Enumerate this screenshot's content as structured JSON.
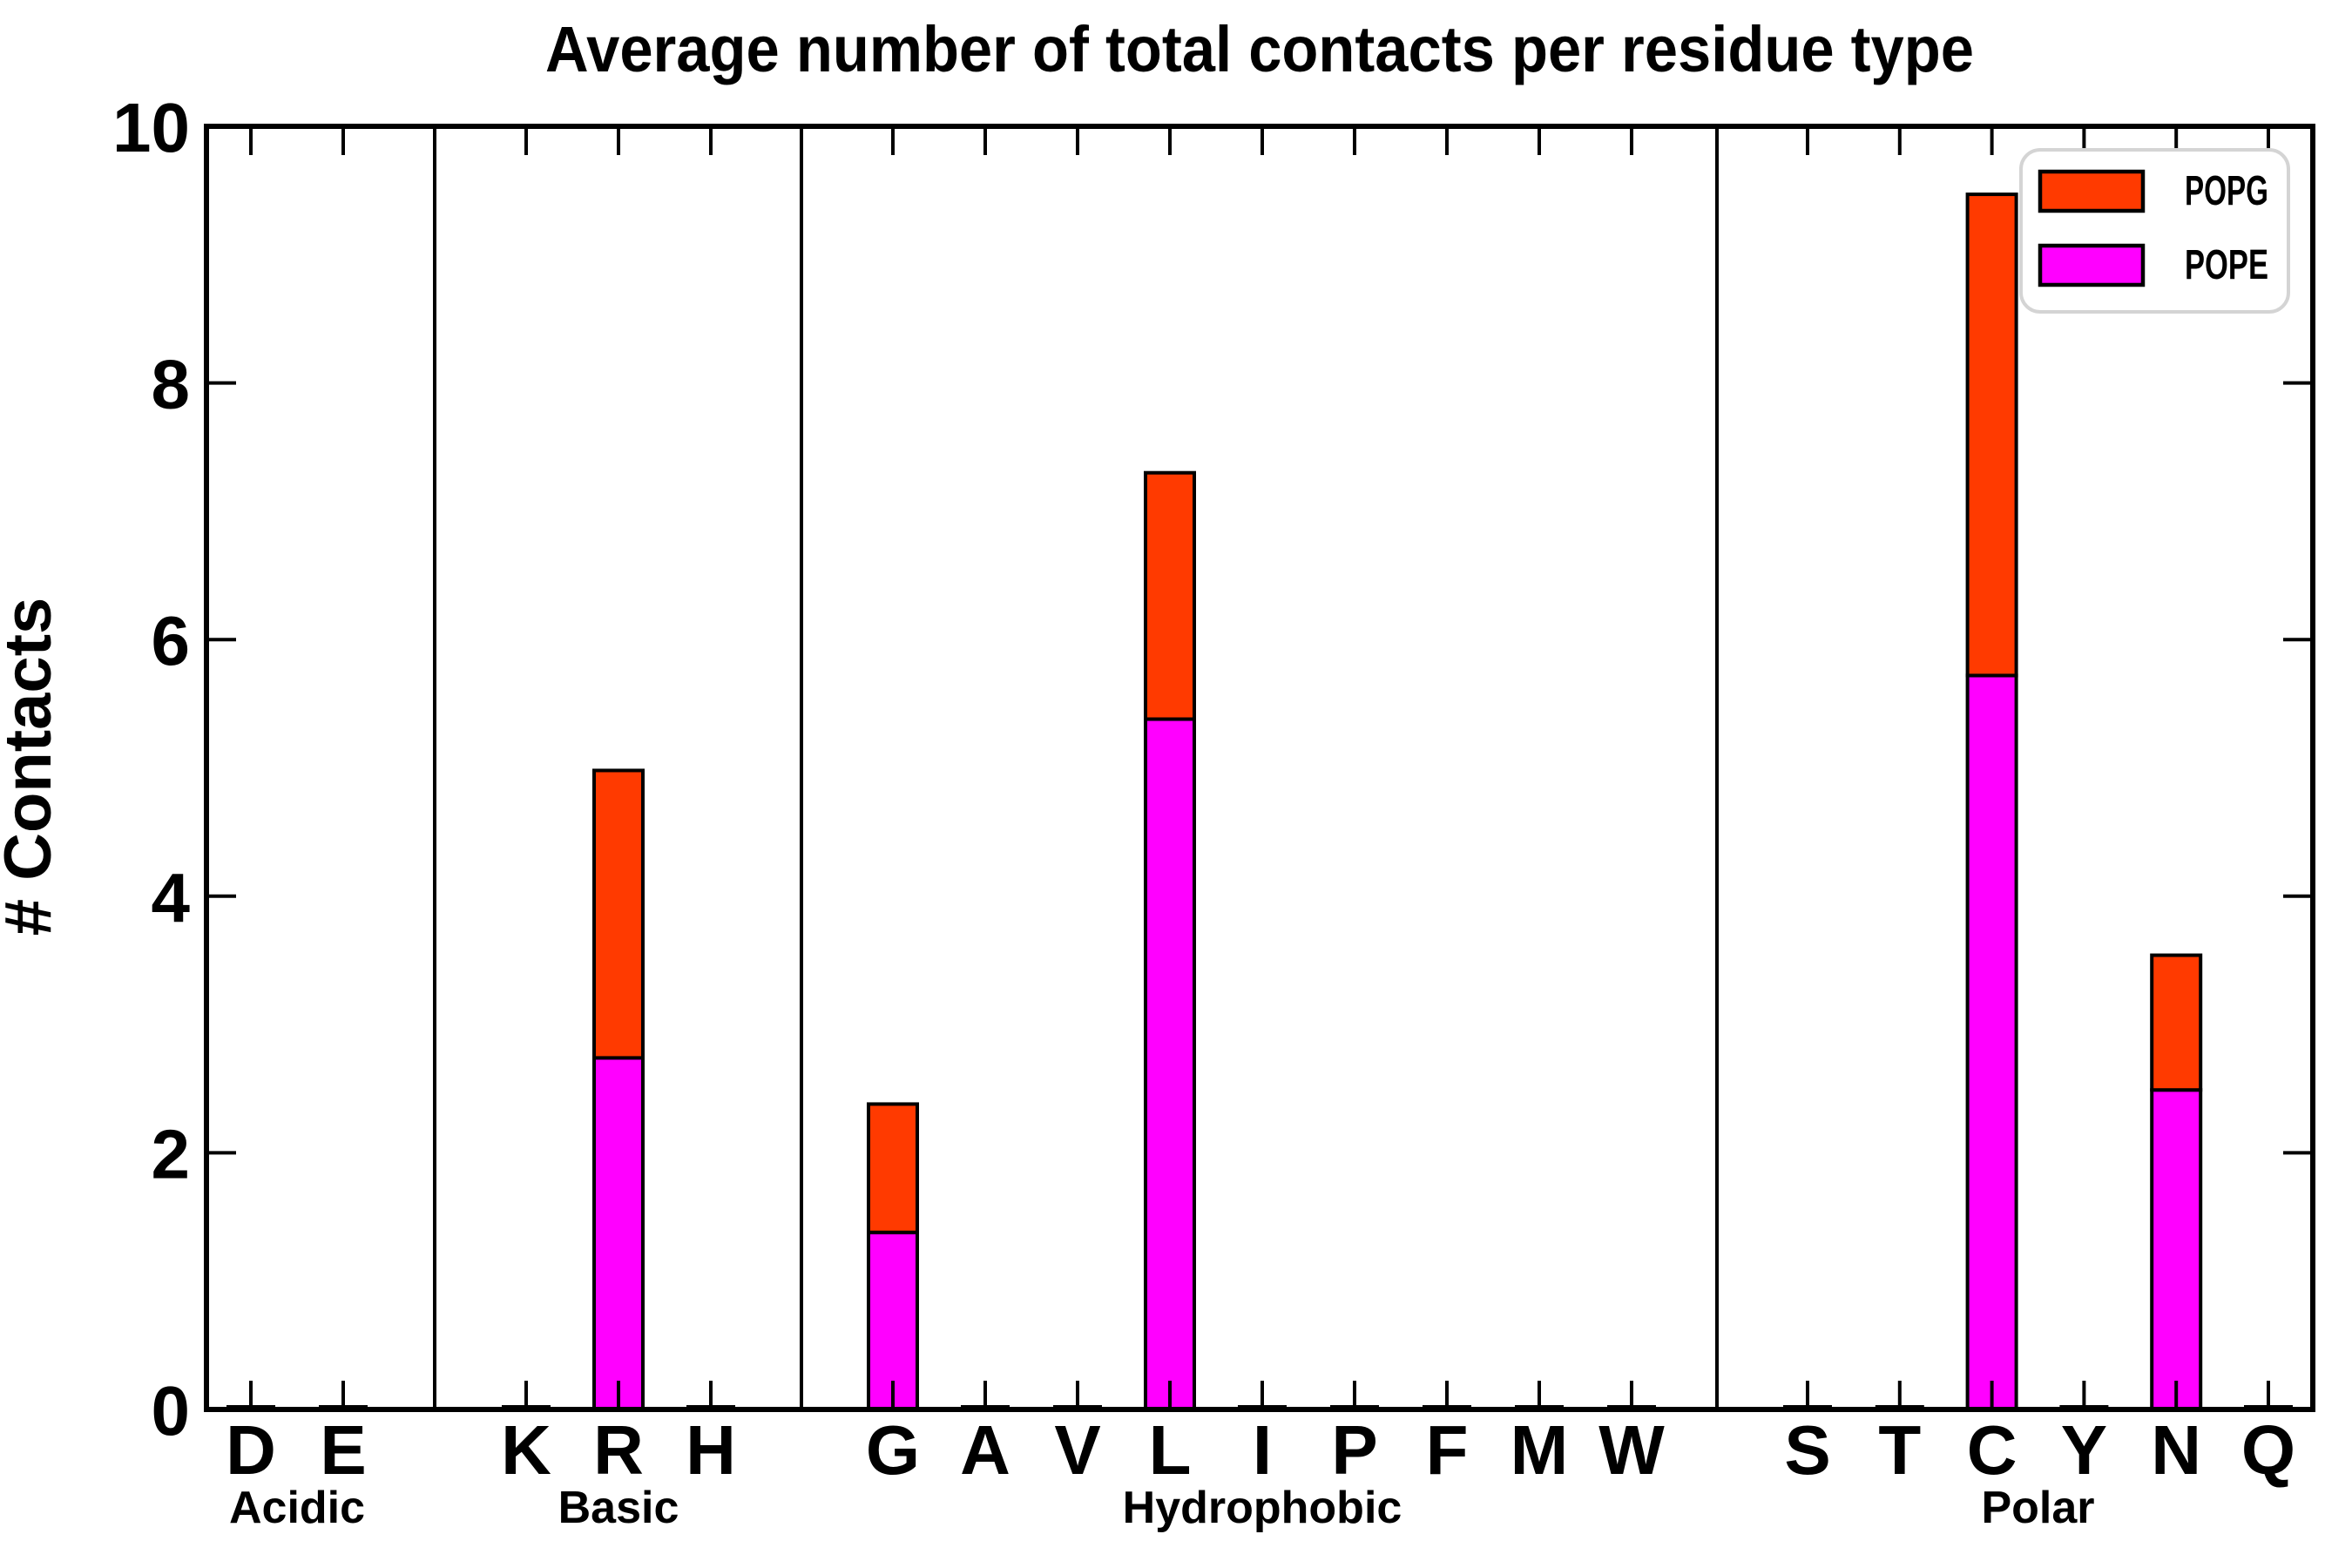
{
  "colors": {
    "popg": "#FF3A00",
    "pope": "#FF00FF",
    "bar_edge": "#000000",
    "axis": "#000000",
    "legend_border": "#D4D4D4",
    "background": "#FFFFFF"
  },
  "chart_data": {
    "type": "bar",
    "stacked": true,
    "title": "Average number of total contacts per residue type",
    "xlabel": "",
    "ylabel": "# Contacts",
    "ylim": [
      0,
      10
    ],
    "yticks": [
      0,
      2,
      4,
      6,
      8,
      10
    ],
    "grid": false,
    "legend_position": "upper right",
    "legend": [
      {
        "label": "POPG",
        "color_key": "popg"
      },
      {
        "label": "POPE",
        "color_key": "pope"
      }
    ],
    "stack_order_bottom_to_top": [
      "POPE",
      "POPG"
    ],
    "groups": [
      {
        "label": "Acidic",
        "categories": [
          "D",
          "E"
        ],
        "series": [
          {
            "name": "POPE",
            "values": [
              0.02,
              0.02
            ]
          },
          {
            "name": "POPG",
            "values": [
              0.02,
              0.02
            ]
          }
        ]
      },
      {
        "label": "Basic",
        "categories": [
          "K",
          "R",
          "H"
        ],
        "series": [
          {
            "name": "POPE",
            "values": [
              0.02,
              2.74,
              0.02
            ]
          },
          {
            "name": "POPG",
            "values": [
              0.02,
              2.24,
              0.02
            ]
          }
        ]
      },
      {
        "label": "Hydrophobic",
        "categories": [
          "G",
          "A",
          "V",
          "L",
          "I",
          "P",
          "F",
          "M",
          "W"
        ],
        "series": [
          {
            "name": "POPE",
            "values": [
              1.38,
              0.02,
              0.02,
              5.38,
              0.02,
              0.02,
              0.02,
              0.02,
              0.02
            ]
          },
          {
            "name": "POPG",
            "values": [
              1.0,
              0.02,
              0.02,
              1.92,
              0.02,
              0.02,
              0.02,
              0.02,
              0.02
            ]
          }
        ]
      },
      {
        "label": "Polar",
        "categories": [
          "S",
          "T",
          "C",
          "Y",
          "N",
          "Q"
        ],
        "series": [
          {
            "name": "POPE",
            "values": [
              0.02,
              0.02,
              5.72,
              0.02,
              2.49,
              0.02
            ]
          },
          {
            "name": "POPG",
            "values": [
              0.02,
              0.02,
              3.75,
              0.02,
              1.05,
              0.02
            ]
          }
        ]
      }
    ]
  }
}
